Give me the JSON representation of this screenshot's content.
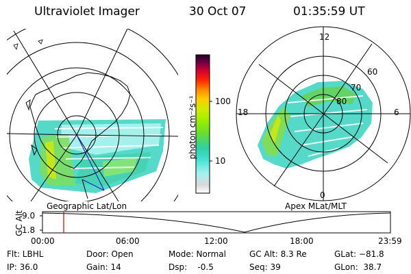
{
  "header": {
    "title": "Ultraviolet Imager",
    "date": "30 Oct 07",
    "time": "01:35:59 UT"
  },
  "left_panel": {
    "caption": "Geographic Lat/Lon"
  },
  "right_panel": {
    "caption": "Apex MLat/MLT",
    "mlt_labels": [
      "12",
      "18",
      "6",
      "0"
    ],
    "lat_labels": [
      "60",
      "70",
      "80"
    ]
  },
  "colorbar": {
    "unit_label": "photon cm⁻²s⁻¹",
    "tick_labels": [
      "100",
      "10"
    ],
    "colors": [
      "#ffffff",
      "#d9d9d9",
      "#a6f2f2",
      "#40e0d0",
      "#30d0a0",
      "#66dd33",
      "#99ee00",
      "#ccee00",
      "#ffcc00",
      "#ff8800",
      "#ff2200",
      "#cc0033",
      "#880044",
      "#440044",
      "#220022"
    ]
  },
  "timeline": {
    "ylabel": "GC Alt",
    "y_ticks": [
      "9.0",
      "1.8"
    ],
    "x_ticks": [
      "00:00",
      "06:00",
      "12:00",
      "18:00",
      "23:59"
    ],
    "current_marker_color": "#cc0000"
  },
  "info": {
    "filter": "Flt: LBHL",
    "ip": "IP: 36.0",
    "door": "Door: Open",
    "gain": "Gain: 14",
    "mode": "Mode: Normal",
    "dsp": "Dsp:    -0.5",
    "gc_alt": "GC Alt: 8.3 Re",
    "seq": "Seq: 39",
    "glat": "GLat: −81.8",
    "glon": "GLon:  38.7"
  }
}
